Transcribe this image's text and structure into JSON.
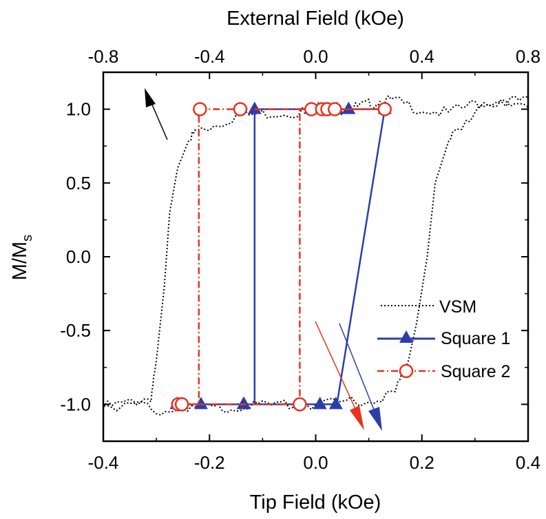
{
  "chart_data": {
    "type": "line",
    "xlabel": "Tip Field (kOe)",
    "x2label": "External Field (kOe)",
    "ylabel": "M/M",
    "ylabel_sub": "s",
    "xlim": [
      -0.4,
      0.4
    ],
    "x2lim": [
      -0.8,
      0.8
    ],
    "ylim": [
      -1.25,
      1.25
    ],
    "xticks": [
      "-0.4",
      "-0.2",
      "0.0",
      "0.2",
      "0.4"
    ],
    "xtick_values": [
      -0.4,
      -0.2,
      0.0,
      0.2,
      0.4
    ],
    "x2ticks": [
      "-0.8",
      "-0.4",
      "0.0",
      "0.4",
      "0.8"
    ],
    "x2tick_values": [
      -0.8,
      -0.4,
      0.0,
      0.4,
      0.8
    ],
    "yticks": [
      "1.0",
      "0.5",
      "0.0",
      "-0.5",
      "-1.0"
    ],
    "ytick_values": [
      1.0,
      0.5,
      0.0,
      -0.5,
      -1.0
    ],
    "legend_position": "lower-right",
    "series": [
      {
        "name": "VSM",
        "color": "#000000",
        "style": "dotted",
        "marker": "none",
        "axis": "external",
        "x": [
          -0.8,
          -0.7,
          -0.62,
          -0.6,
          -0.57,
          -0.55,
          -0.52,
          -0.48,
          -0.45,
          -0.4,
          -0.3,
          -0.2,
          -0.1,
          0.0,
          0.1,
          0.15,
          0.2,
          0.25,
          0.3,
          0.4,
          0.5,
          0.6,
          0.7,
          0.8,
          0.8,
          0.7,
          0.6,
          0.55,
          0.5,
          0.45,
          0.42,
          0.38,
          0.35,
          0.3,
          0.2,
          0.1,
          0.0,
          -0.1,
          -0.2,
          -0.3,
          -0.4,
          -0.5,
          -0.6,
          -0.7,
          -0.8
        ],
        "y": [
          -1.02,
          -0.99,
          -0.95,
          -0.7,
          -0.2,
          0.3,
          0.6,
          0.78,
          0.85,
          0.88,
          0.95,
          0.97,
          0.98,
          0.99,
          1.0,
          1.01,
          1.03,
          1.06,
          1.05,
          1.0,
          0.97,
          1.04,
          1.06,
          1.05,
          1.05,
          1.03,
          0.98,
          0.9,
          0.78,
          0.5,
          0.0,
          -0.45,
          -0.7,
          -0.92,
          -0.98,
          -0.99,
          -1.0,
          -1.0,
          -1.01,
          -1.02,
          -1.03,
          -1.02,
          -1.05,
          -1.0,
          -1.01
        ]
      },
      {
        "name": "Square 1",
        "color": "#2b3ea8",
        "style": "solid",
        "marker": "triangle",
        "axis": "tip",
        "x": [
          -0.265,
          -0.245,
          -0.215,
          -0.135,
          -0.115,
          -0.115,
          -0.115,
          -0.01,
          0.005,
          0.02,
          0.04,
          0.055,
          0.065,
          0.065,
          0.13,
          0.04,
          0.035,
          -0.125,
          -0.14,
          -0.2,
          -0.245,
          -0.265
        ],
        "y": [
          -1.0,
          -1.0,
          -1.0,
          -1.0,
          -1.0,
          1.0,
          1.0,
          1.0,
          1.0,
          1.0,
          1.0,
          1.0,
          1.0,
          1.0,
          1.0,
          -1.0,
          -1.0,
          -1.0,
          -1.0,
          -1.0,
          -1.0,
          -1.0
        ],
        "markers_x": [
          -0.262,
          -0.252,
          -0.216,
          -0.136,
          -0.115,
          -0.01,
          0.005,
          0.02,
          0.04,
          0.062,
          0.13,
          -0.135,
          0.008,
          0.038
        ],
        "markers_y": [
          -1.0,
          -1.0,
          -1.0,
          -1.0,
          1.0,
          1.0,
          1.0,
          1.0,
          1.0,
          1.0,
          1.0,
          -1.0,
          -1.0,
          -1.0
        ]
      },
      {
        "name": "Square 2",
        "color": "#e8321e",
        "style": "dashdot",
        "marker": "circle",
        "axis": "tip",
        "x": [
          -0.26,
          -0.25,
          -0.22,
          -0.22,
          -0.14,
          -0.115,
          -0.01,
          0.01,
          0.02,
          0.035,
          0.065,
          0.13,
          0.02,
          0.01,
          -0.03,
          -0.03,
          -0.25,
          -0.26
        ],
        "y": [
          -1.0,
          -1.0,
          -1.0,
          1.0,
          1.0,
          1.0,
          1.0,
          1.0,
          1.0,
          1.0,
          1.0,
          1.0,
          1.0,
          1.0,
          1.0,
          -1.0,
          -1.0,
          -1.0
        ],
        "markers_x": [
          -0.259,
          -0.252,
          -0.218,
          -0.142,
          -0.008,
          0.012,
          0.022,
          0.036,
          0.13,
          -0.03
        ],
        "markers_y": [
          -1.0,
          -1.0,
          1.0,
          1.0,
          1.0,
          1.0,
          1.0,
          1.0,
          1.0,
          -1.0
        ]
      }
    ]
  }
}
